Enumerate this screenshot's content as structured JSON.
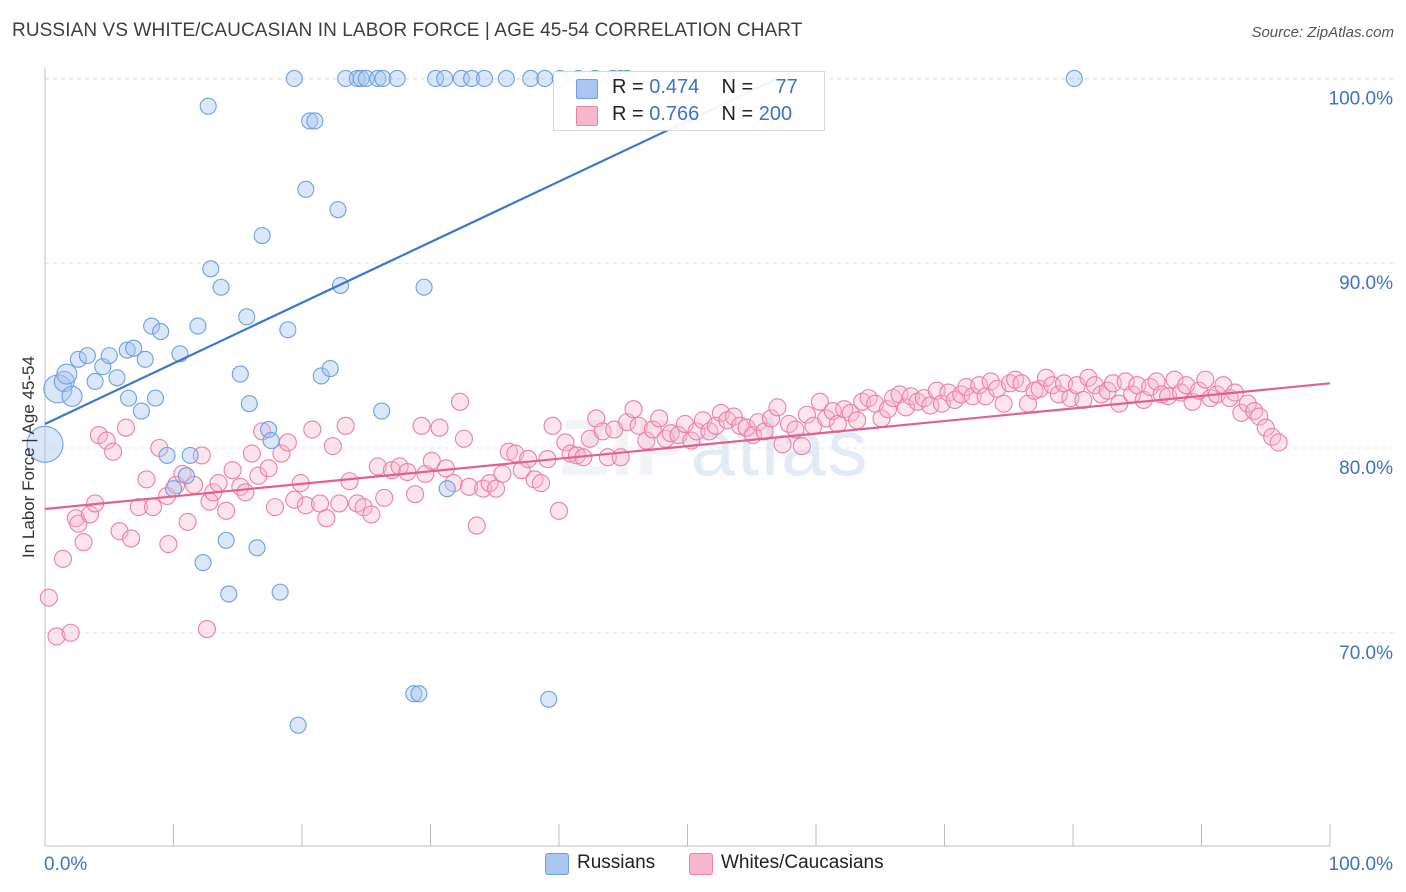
{
  "title": "RUSSIAN VS WHITE/CAUCASIAN IN LABOR FORCE | AGE 45-54 CORRELATION CHART",
  "source": "Source: ZipAtlas.com",
  "watermark": {
    "zip": "ZIP",
    "atlas": "atlas"
  },
  "legend": {
    "russians": {
      "r_label": "R =",
      "r_value": "0.474",
      "n_label": "N =",
      "n_value": "77",
      "color": "#a8c6ef"
    },
    "whites": {
      "r_label": "R =",
      "r_value": "0.766",
      "n_label": "N =",
      "n_value": "200",
      "color": "#f7b8cc"
    }
  },
  "bottom_legend": {
    "russians": "Russians",
    "whites": "Whites/Caucasians"
  },
  "chart_data": {
    "type": "scatter",
    "title": "RUSSIAN VS WHITE/CAUCASIAN IN LABOR FORCE | AGE 45-54 CORRELATION CHART",
    "xlabel": "",
    "ylabel": "In Labor Force | Age 45-54",
    "x_tick_labels": [
      "0.0%",
      "100.0%"
    ],
    "y_tick_labels": [
      "70.0%",
      "80.0%",
      "90.0%",
      "100.0%"
    ],
    "xlim": [
      0,
      100
    ],
    "ylim": [
      59,
      101
    ],
    "y_ticks": [
      70,
      80,
      90,
      100
    ],
    "colors": {
      "russians": "#6f9ee0",
      "whites": "#ec7fa2",
      "russians_line": "#3a78cc",
      "whites_line": "#e0608e"
    },
    "series": [
      {
        "name": "Russians",
        "trend": {
          "x0": 0,
          "y0": 81.3,
          "x1": 57,
          "y1": 100
        },
        "points": [
          [
            0.0,
            80.2,
            18
          ],
          [
            1.0,
            83.2,
            14
          ],
          [
            1.5,
            83.6,
            10
          ],
          [
            1.7,
            84.0,
            10
          ],
          [
            2.1,
            82.8,
            10
          ],
          [
            2.6,
            84.8,
            8
          ],
          [
            3.3,
            85.0,
            8
          ],
          [
            3.9,
            83.6,
            8
          ],
          [
            4.5,
            84.4,
            8
          ],
          [
            5.0,
            85.0,
            8
          ],
          [
            5.6,
            83.8,
            8
          ],
          [
            6.4,
            85.3,
            8
          ],
          [
            6.5,
            82.7,
            8
          ],
          [
            6.9,
            85.4,
            8
          ],
          [
            7.5,
            82.0,
            8
          ],
          [
            7.8,
            84.8,
            8
          ],
          [
            8.3,
            86.6,
            8
          ],
          [
            8.6,
            82.7,
            8
          ],
          [
            9.0,
            86.3,
            8
          ],
          [
            9.5,
            79.6,
            8
          ],
          [
            10.0,
            77.8,
            8
          ],
          [
            10.5,
            85.1,
            8
          ],
          [
            11.0,
            78.5,
            8
          ],
          [
            11.3,
            79.6,
            8
          ],
          [
            11.9,
            86.6,
            8
          ],
          [
            12.3,
            73.8,
            8
          ],
          [
            12.7,
            98.5,
            8
          ],
          [
            12.9,
            89.7,
            8
          ],
          [
            13.7,
            88.7,
            8
          ],
          [
            14.1,
            75.0,
            8
          ],
          [
            14.3,
            72.1,
            8
          ],
          [
            15.2,
            84.0,
            8
          ],
          [
            15.7,
            87.1,
            8
          ],
          [
            15.9,
            82.4,
            8
          ],
          [
            16.5,
            74.6,
            8
          ],
          [
            16.9,
            91.5,
            8
          ],
          [
            17.4,
            81.0,
            8
          ],
          [
            17.6,
            80.4,
            8
          ],
          [
            18.3,
            72.2,
            8
          ],
          [
            18.9,
            86.4,
            8
          ],
          [
            19.4,
            100.0,
            8
          ],
          [
            19.7,
            65.0,
            8
          ],
          [
            20.3,
            94.0,
            8
          ],
          [
            20.6,
            97.7,
            8
          ],
          [
            21.0,
            97.7,
            8
          ],
          [
            21.5,
            83.9,
            8
          ],
          [
            22.2,
            84.3,
            8
          ],
          [
            22.8,
            92.9,
            8
          ],
          [
            23.0,
            88.8,
            8
          ],
          [
            23.4,
            100.0,
            8
          ],
          [
            24.3,
            100.0,
            8
          ],
          [
            24.6,
            100.0,
            8
          ],
          [
            25.0,
            100.0,
            8
          ],
          [
            25.9,
            100.0,
            8
          ],
          [
            26.3,
            100.0,
            8
          ],
          [
            26.2,
            82.0,
            8
          ],
          [
            27.4,
            100.0,
            8
          ],
          [
            28.7,
            66.7,
            8
          ],
          [
            29.1,
            66.7,
            8
          ],
          [
            29.5,
            88.7,
            8
          ],
          [
            30.4,
            100.0,
            8
          ],
          [
            31.1,
            100.0,
            8
          ],
          [
            31.3,
            77.8,
            8
          ],
          [
            32.4,
            100.0,
            8
          ],
          [
            33.2,
            100.0,
            8
          ],
          [
            34.2,
            100.0,
            8
          ],
          [
            35.9,
            100.0,
            8
          ],
          [
            37.8,
            100.0,
            8
          ],
          [
            38.9,
            100.0,
            8
          ],
          [
            39.2,
            66.4,
            8
          ],
          [
            40.1,
            100.0,
            8
          ],
          [
            41.5,
            100.0,
            8
          ],
          [
            42.8,
            100.0,
            8
          ],
          [
            44.2,
            100.0,
            8
          ],
          [
            44.8,
            100.0,
            8
          ],
          [
            45.3,
            100.0,
            8
          ],
          [
            80.1,
            100.0,
            8
          ]
        ]
      },
      {
        "name": "Whites/Caucasians",
        "trend": {
          "x0": 0,
          "y0": 76.7,
          "x1": 100,
          "y1": 83.5
        },
        "points": [
          [
            0.3,
            71.9
          ],
          [
            0.9,
            69.8
          ],
          [
            1.4,
            74.0
          ],
          [
            2.0,
            70.0
          ],
          [
            2.4,
            76.2
          ],
          [
            2.6,
            75.9
          ],
          [
            3.0,
            74.9
          ],
          [
            3.5,
            76.4
          ],
          [
            3.9,
            77.0
          ],
          [
            4.2,
            80.7
          ],
          [
            4.8,
            80.4
          ],
          [
            5.3,
            79.8
          ],
          [
            5.8,
            75.5
          ],
          [
            6.3,
            81.1
          ],
          [
            6.7,
            75.1
          ],
          [
            7.3,
            76.8
          ],
          [
            7.9,
            78.3
          ],
          [
            8.4,
            76.8
          ],
          [
            8.9,
            80.0
          ],
          [
            9.5,
            77.4
          ],
          [
            9.6,
            74.8
          ],
          [
            10.2,
            78.0
          ],
          [
            10.7,
            78.6
          ],
          [
            11.1,
            76.0
          ],
          [
            11.6,
            78.0
          ],
          [
            12.2,
            79.6
          ],
          [
            12.6,
            70.2
          ],
          [
            12.8,
            77.1
          ],
          [
            13.1,
            77.6
          ],
          [
            13.5,
            78.1
          ],
          [
            14.1,
            76.6
          ],
          [
            14.6,
            78.8
          ],
          [
            15.2,
            77.9
          ],
          [
            15.6,
            77.6
          ],
          [
            16.1,
            79.7
          ],
          [
            16.6,
            78.5
          ],
          [
            16.9,
            80.9
          ],
          [
            17.4,
            78.9
          ],
          [
            17.9,
            76.8
          ],
          [
            18.4,
            79.7
          ],
          [
            18.9,
            80.3
          ],
          [
            19.4,
            77.2
          ],
          [
            19.9,
            78.1
          ],
          [
            20.3,
            76.9
          ],
          [
            20.8,
            81.0
          ],
          [
            21.4,
            77.0
          ],
          [
            21.9,
            76.2
          ],
          [
            22.4,
            80.1
          ],
          [
            22.9,
            77.0
          ],
          [
            23.4,
            81.2
          ],
          [
            23.7,
            78.2
          ],
          [
            24.3,
            77.0
          ],
          [
            24.8,
            76.8
          ],
          [
            25.4,
            76.4
          ],
          [
            25.9,
            79.0
          ],
          [
            26.4,
            77.3
          ],
          [
            27.0,
            78.8
          ],
          [
            27.6,
            79.0
          ],
          [
            28.2,
            78.7
          ],
          [
            28.8,
            77.5
          ],
          [
            29.3,
            81.2
          ],
          [
            29.6,
            78.6
          ],
          [
            30.1,
            79.3
          ],
          [
            30.7,
            81.1
          ],
          [
            31.2,
            78.9
          ],
          [
            31.8,
            78.1
          ],
          [
            32.3,
            82.5
          ],
          [
            32.6,
            80.5
          ],
          [
            33.0,
            77.9
          ],
          [
            33.6,
            75.8
          ],
          [
            34.1,
            77.8
          ],
          [
            34.6,
            78.1
          ],
          [
            35.1,
            77.8
          ],
          [
            35.6,
            78.6
          ],
          [
            36.1,
            79.8
          ],
          [
            36.6,
            79.7
          ],
          [
            37.1,
            78.8
          ],
          [
            37.6,
            79.4
          ],
          [
            38.1,
            78.3
          ],
          [
            38.6,
            78.1
          ],
          [
            39.1,
            79.4
          ],
          [
            39.5,
            81.2
          ],
          [
            40.0,
            76.6
          ],
          [
            40.5,
            80.3
          ],
          [
            40.9,
            79.7
          ],
          [
            41.4,
            79.6
          ],
          [
            41.9,
            79.5
          ],
          [
            42.4,
            80.5
          ],
          [
            42.9,
            81.6
          ],
          [
            43.4,
            80.9
          ],
          [
            43.8,
            79.5
          ],
          [
            44.3,
            81.0
          ],
          [
            44.8,
            79.5
          ],
          [
            45.3,
            81.4
          ],
          [
            45.8,
            82.1
          ],
          [
            46.2,
            81.2
          ],
          [
            46.8,
            80.4
          ],
          [
            47.3,
            81.0
          ],
          [
            47.8,
            81.6
          ],
          [
            48.3,
            80.5
          ],
          [
            48.7,
            80.8
          ],
          [
            49.3,
            80.7
          ],
          [
            49.8,
            81.3
          ],
          [
            50.3,
            80.4
          ],
          [
            50.7,
            80.9
          ],
          [
            51.2,
            81.5
          ],
          [
            51.7,
            80.9
          ],
          [
            52.2,
            81.2
          ],
          [
            52.6,
            81.9
          ],
          [
            53.1,
            81.5
          ],
          [
            53.6,
            81.7
          ],
          [
            54.1,
            81.2
          ],
          [
            54.6,
            81.1
          ],
          [
            55.1,
            80.7
          ],
          [
            55.5,
            81.4
          ],
          [
            56.0,
            80.9
          ],
          [
            56.5,
            81.6
          ],
          [
            57.0,
            82.2
          ],
          [
            57.4,
            80.2
          ],
          [
            57.9,
            81.3
          ],
          [
            58.4,
            81.0
          ],
          [
            58.9,
            80.1
          ],
          [
            59.3,
            81.8
          ],
          [
            59.8,
            81.2
          ],
          [
            60.3,
            82.5
          ],
          [
            60.8,
            81.6
          ],
          [
            61.3,
            82.0
          ],
          [
            61.7,
            81.3
          ],
          [
            62.2,
            82.1
          ],
          [
            62.7,
            81.9
          ],
          [
            63.2,
            81.5
          ],
          [
            63.6,
            82.5
          ],
          [
            64.1,
            82.7
          ],
          [
            64.6,
            82.4
          ],
          [
            65.1,
            81.6
          ],
          [
            65.6,
            82.1
          ],
          [
            66.0,
            82.7
          ],
          [
            66.5,
            82.9
          ],
          [
            67.0,
            82.2
          ],
          [
            67.4,
            82.8
          ],
          [
            67.9,
            82.5
          ],
          [
            68.4,
            82.7
          ],
          [
            68.9,
            82.3
          ],
          [
            69.4,
            83.1
          ],
          [
            69.8,
            82.4
          ],
          [
            70.3,
            83.0
          ],
          [
            70.8,
            82.6
          ],
          [
            71.3,
            82.9
          ],
          [
            71.7,
            83.3
          ],
          [
            72.2,
            82.8
          ],
          [
            72.7,
            83.4
          ],
          [
            73.2,
            82.8
          ],
          [
            73.6,
            83.6
          ],
          [
            74.1,
            83.2
          ],
          [
            74.6,
            82.4
          ],
          [
            75.1,
            83.5
          ],
          [
            75.5,
            83.7
          ],
          [
            76.0,
            83.5
          ],
          [
            76.5,
            82.4
          ],
          [
            77.0,
            83.1
          ],
          [
            77.4,
            83.2
          ],
          [
            77.9,
            83.8
          ],
          [
            78.4,
            83.4
          ],
          [
            78.9,
            82.9
          ],
          [
            79.3,
            83.5
          ],
          [
            79.8,
            82.7
          ],
          [
            80.3,
            83.4
          ],
          [
            80.8,
            82.6
          ],
          [
            81.2,
            83.8
          ],
          [
            81.7,
            83.4
          ],
          [
            82.2,
            82.9
          ],
          [
            82.7,
            83.1
          ],
          [
            83.1,
            83.5
          ],
          [
            83.6,
            82.4
          ],
          [
            84.1,
            83.6
          ],
          [
            84.6,
            82.9
          ],
          [
            85.0,
            83.4
          ],
          [
            85.5,
            82.6
          ],
          [
            86.0,
            83.3
          ],
          [
            86.5,
            83.6
          ],
          [
            86.9,
            82.9
          ],
          [
            87.4,
            82.8
          ],
          [
            87.9,
            83.7
          ],
          [
            88.4,
            83.0
          ],
          [
            88.8,
            83.4
          ],
          [
            89.3,
            82.5
          ],
          [
            89.8,
            83.1
          ],
          [
            90.3,
            83.7
          ],
          [
            90.7,
            82.7
          ],
          [
            91.2,
            82.9
          ],
          [
            91.7,
            83.4
          ],
          [
            92.2,
            82.7
          ],
          [
            92.6,
            83.0
          ],
          [
            93.1,
            81.9
          ],
          [
            93.6,
            82.4
          ],
          [
            94.1,
            82.0
          ],
          [
            94.5,
            81.7
          ],
          [
            95.0,
            81.1
          ],
          [
            95.5,
            80.6
          ],
          [
            96.0,
            80.3
          ]
        ]
      }
    ]
  }
}
